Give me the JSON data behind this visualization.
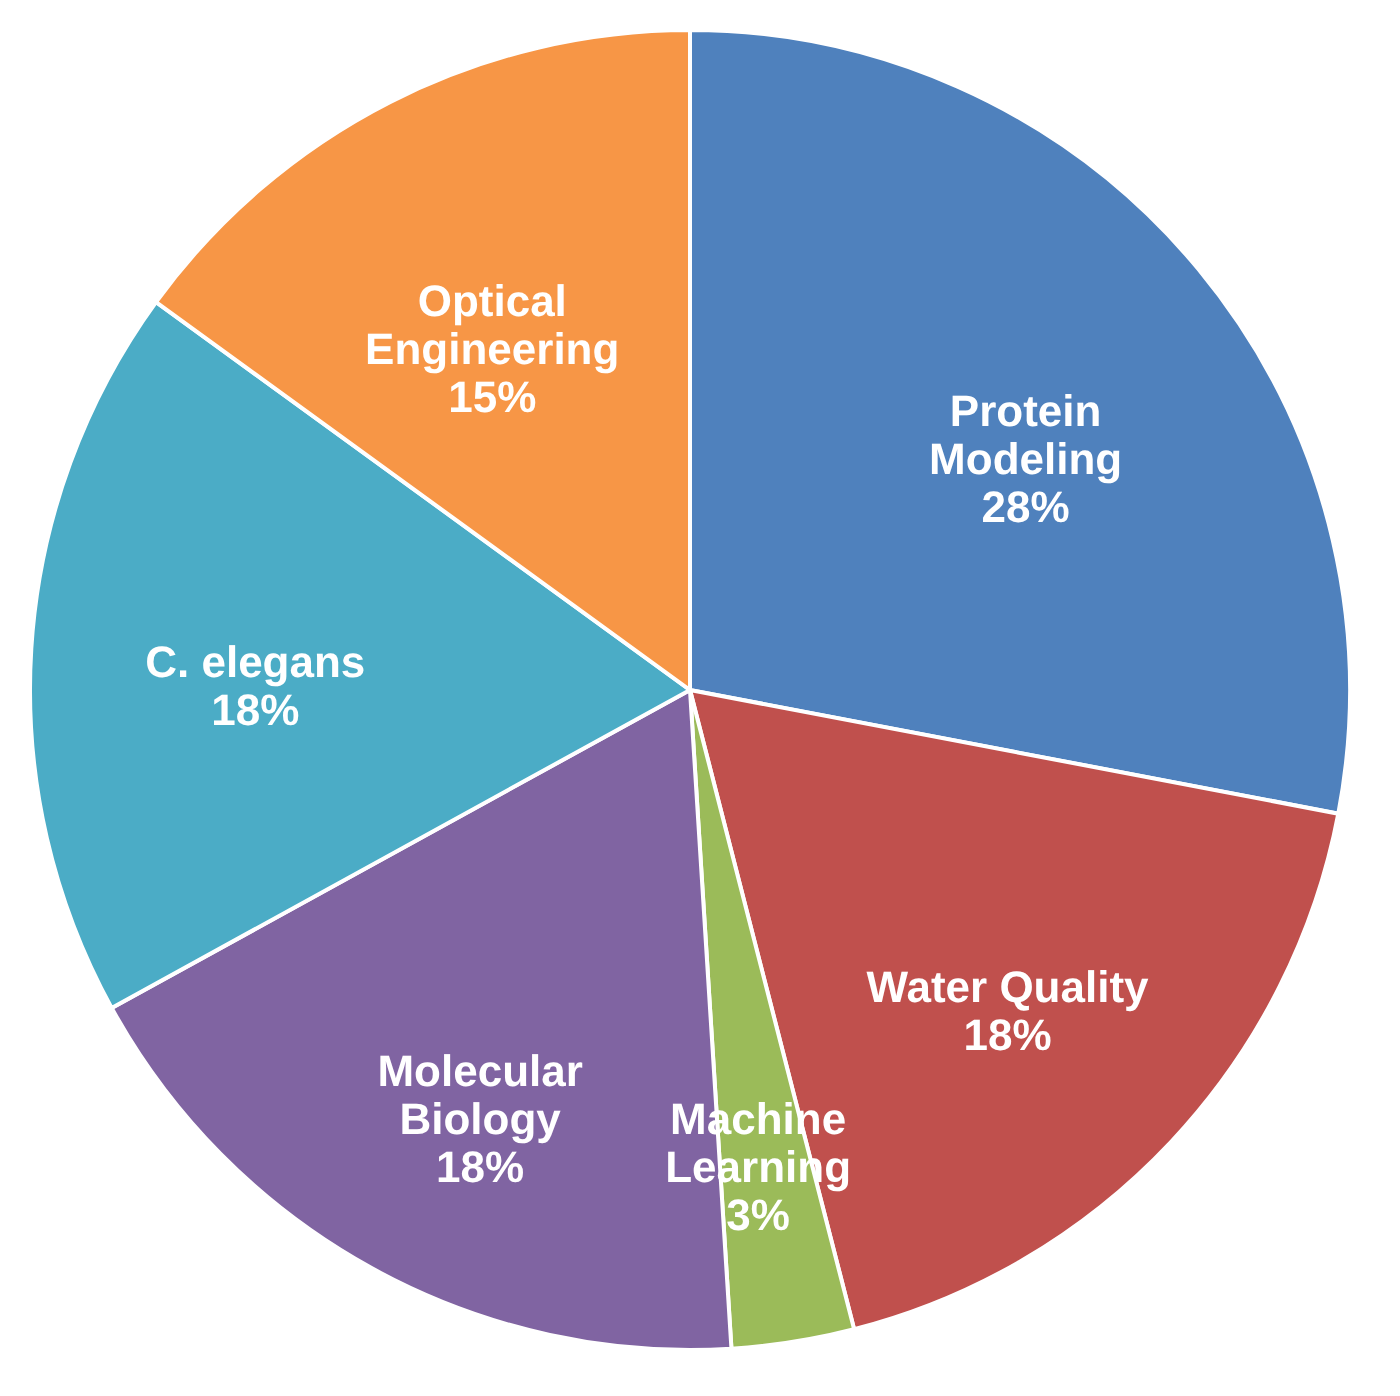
{
  "chart_data": {
    "type": "pie",
    "categories": [
      "Protein\nModeling",
      "Water Quality",
      "Machine\nLearning",
      "Molecular\nBiology",
      "C. elegans",
      "Optical\nEngineering"
    ],
    "values": [
      28,
      18,
      3,
      18,
      18,
      15
    ],
    "value_labels": [
      "28%",
      "18%",
      "3%",
      "18%",
      "18%",
      "15%"
    ],
    "colors": [
      "#4f81bd",
      "#c0504d",
      "#9bbb59",
      "#8064a2",
      "#4bacc6",
      "#f79646"
    ],
    "legend": false
  }
}
